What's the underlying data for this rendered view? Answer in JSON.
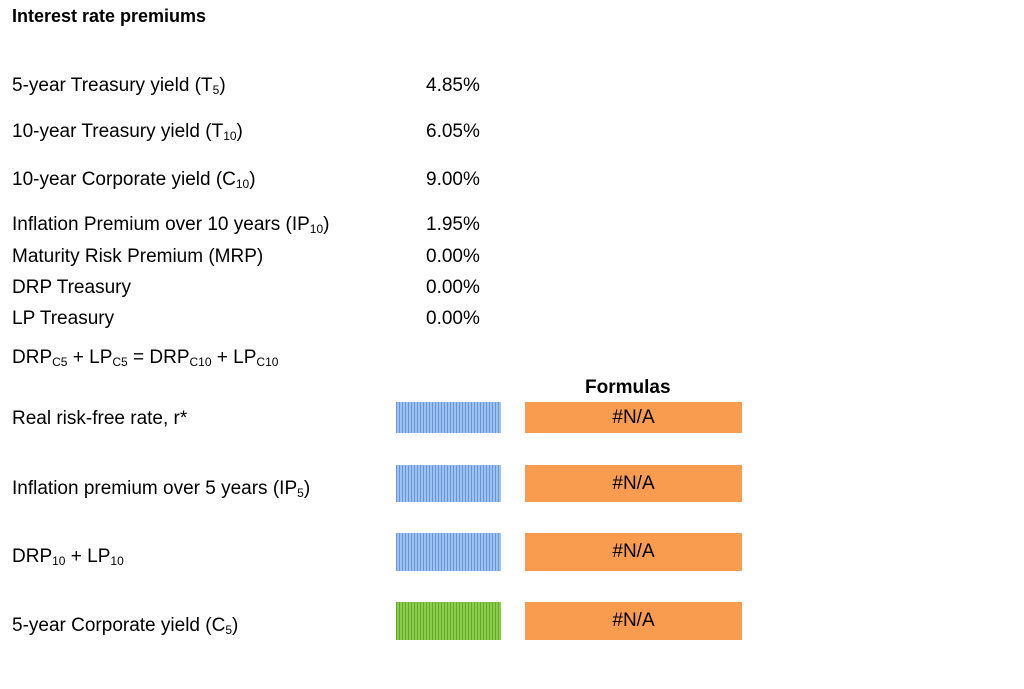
{
  "title": "Interest rate premiums",
  "rows": [
    {
      "label": "5-year Treasury yield (T",
      "sub": "5",
      "tail": ")",
      "value": "4.85%"
    },
    {
      "label": "10-year Treasury yield (T",
      "sub": "10",
      "tail": ")",
      "value": "6.05%"
    },
    {
      "label": "10-year Corporate yield (C",
      "sub": "10",
      "tail": ")",
      "value": "9.00%"
    },
    {
      "label": "Inflation Premium over 10 years (IP",
      "sub": "10",
      "tail": ")",
      "value": "1.95%"
    },
    {
      "label": "Maturity Risk Premium (MRP)",
      "value": "0.00%"
    },
    {
      "label": "DRP Treasury",
      "value": "0.00%"
    },
    {
      "label": "LP Treasury",
      "value": "0.00%"
    }
  ],
  "equation": {
    "p1": "DRP",
    "s1": "C5",
    "p2": " + LP",
    "s2": "C5",
    "p3": " = DRP",
    "s3": "C10",
    "p4": " + LP",
    "s4": "C10"
  },
  "formulas_header": "Formulas",
  "outputs": [
    {
      "label": "Real risk-free rate, r*",
      "formula": "#N/A"
    },
    {
      "label": "Inflation premium over 5 years (IP",
      "sub": "5",
      "tail": ")",
      "formula": "#N/A"
    },
    {
      "label": "DRP",
      "sub": "10",
      "mid": " + LP",
      "sub2": "10",
      "formula": "#N/A"
    },
    {
      "label": "5-year Corporate yield (C",
      "sub": "5",
      "tail": ")",
      "formula": "#N/A"
    }
  ],
  "colors": {
    "input_cell": "#9cc2f0",
    "answer_cell": "#8ccc48",
    "formula_cell": "#f99c50"
  }
}
